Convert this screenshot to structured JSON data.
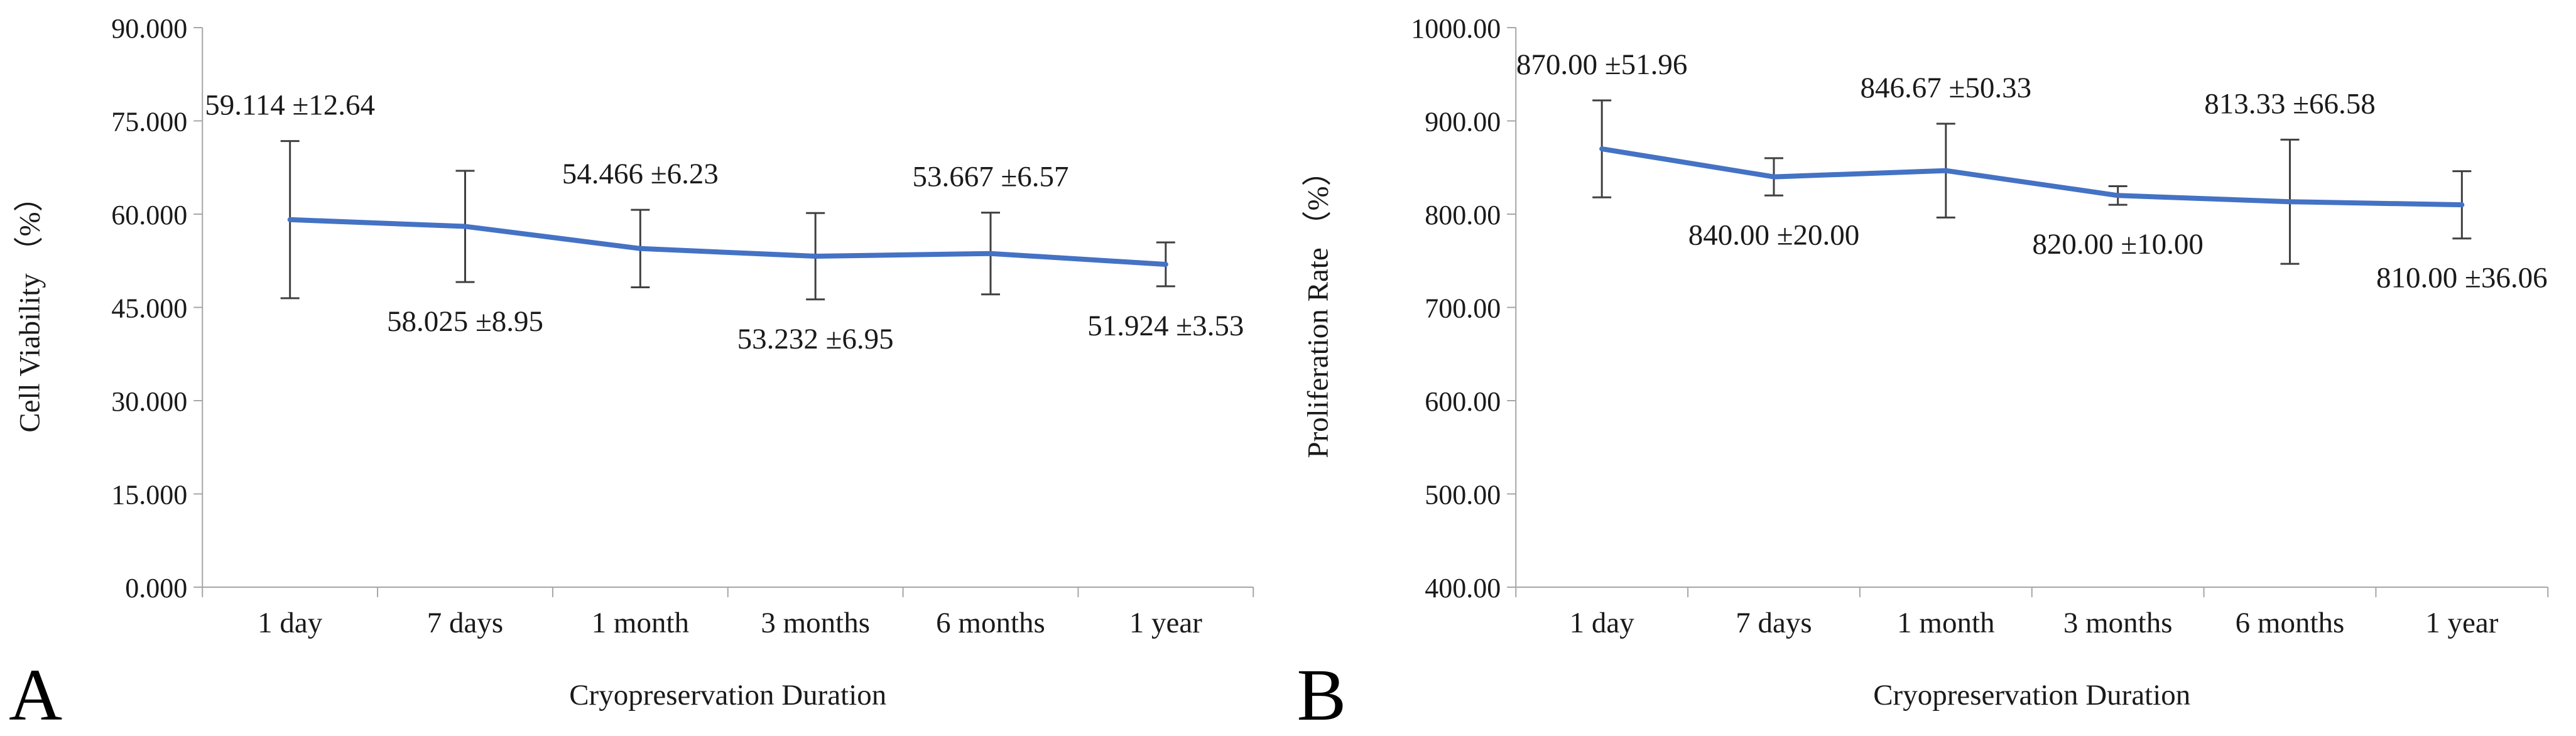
{
  "panels": [
    {
      "letter": "A"
    },
    {
      "letter": "B"
    }
  ],
  "colors": {
    "line": "#4472C4",
    "axis": "#A6A6A6",
    "error_bar": "#404040",
    "text": "#1a1a1a"
  },
  "chart_data": [
    {
      "type": "line",
      "panel": "A",
      "title": "",
      "categories": [
        "1 day",
        "7 days",
        "1 month",
        "3 months",
        "6 months",
        "1 year"
      ],
      "series": [
        {
          "name": "Cell Viability",
          "values": [
            59.114,
            58.025,
            54.466,
            53.232,
            53.667,
            51.924
          ],
          "errors": [
            12.64,
            8.95,
            6.23,
            6.95,
            6.57,
            3.53
          ]
        }
      ],
      "point_labels": [
        "59.114 ±12.64",
        "58.025 ±8.95",
        "54.466 ±6.23",
        "53.232 ±6.95",
        "53.667 ±6.57",
        "51.924 ±3.53"
      ],
      "label_side": [
        "above",
        "below",
        "above",
        "below",
        "above",
        "below"
      ],
      "xlabel": "Cryopreservation Duration",
      "ylabel": "Cell Viability （%）",
      "ylim": [
        0,
        90
      ],
      "ytick_step": 15,
      "ytick_labels": [
        "0.000",
        "15.000",
        "30.000",
        "45.000",
        "60.000",
        "75.000",
        "90.000"
      ],
      "grid": false,
      "legend": "none",
      "line_color": "#4472C4"
    },
    {
      "type": "line",
      "panel": "B",
      "title": "",
      "categories": [
        "1 day",
        "7 days",
        "1 month",
        "3 months",
        "6 months",
        "1 year"
      ],
      "series": [
        {
          "name": "Proliferation Rate",
          "values": [
            870.0,
            840.0,
            846.67,
            820.0,
            813.33,
            810.0
          ],
          "errors": [
            51.96,
            20.0,
            50.33,
            10.0,
            66.58,
            36.06
          ]
        }
      ],
      "point_labels": [
        "870.00 ±51.96",
        "840.00 ±20.00",
        "846.67 ±50.33",
        "820.00 ±10.00",
        "813.33 ±66.58",
        "810.00 ±36.06"
      ],
      "label_side": [
        "above",
        "below",
        "above",
        "below",
        "above",
        "below"
      ],
      "xlabel": "Cryopreservation Duration",
      "ylabel": "Proliferation Rate （%）",
      "ylim": [
        400,
        1000
      ],
      "ytick_step": 100,
      "ytick_labels": [
        "400.00",
        "500.00",
        "600.00",
        "700.00",
        "800.00",
        "900.00",
        "1000.00"
      ],
      "grid": false,
      "legend": "none",
      "line_color": "#4472C4"
    }
  ]
}
